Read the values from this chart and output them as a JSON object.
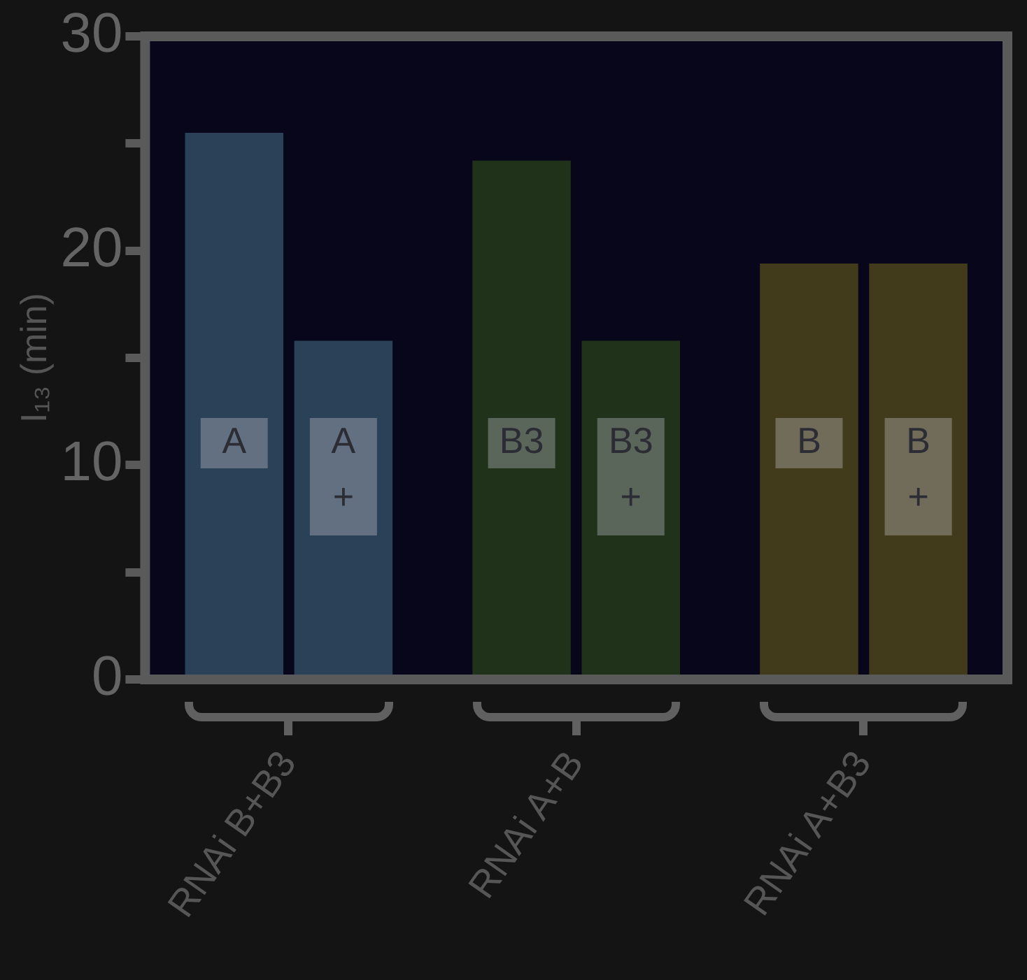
{
  "chart_data": {
    "type": "bar",
    "ylabel": "I₁₃ (min)",
    "categories": [
      "RNAi B+B3",
      "RNAi A+B",
      "RNAi A+B3"
    ],
    "series": [
      {
        "colors": [
          "#2b4157",
          "#20321a",
          "#423b1b"
        ],
        "values": [
          25.5,
          24.2,
          19.4
        ]
      },
      {
        "colors": [
          "#2b4157",
          "#20321a",
          "#423b1b"
        ],
        "values": [
          15.8,
          15.8,
          19.4
        ]
      }
    ],
    "ylim": [
      0,
      30
    ],
    "yticks": [
      0,
      {
        "value": 5,
        "label": null
      },
      10,
      {
        "value": 15,
        "label": null
      },
      20,
      {
        "value": 25,
        "label": null
      },
      30
    ],
    "grid": false,
    "legend": false,
    "annotations": [
      {
        "text": "A",
        "x": "RNAi B+B3",
        "y": 10.5
      },
      {
        "text": "A\n+",
        "x": "RNAi B+B3",
        "y": 10.5
      },
      {
        "text": "B3",
        "x": "RNAi A+B",
        "y": 10.5
      },
      {
        "text": "B3\n+",
        "x": "RNAi A+B",
        "y": 10.5
      },
      {
        "text": "B",
        "x": "RNAi A+B3",
        "y": 10.5
      },
      {
        "text": "B\n+",
        "x": "RNAi A+B3",
        "y": 10.5
      }
    ]
  }
}
